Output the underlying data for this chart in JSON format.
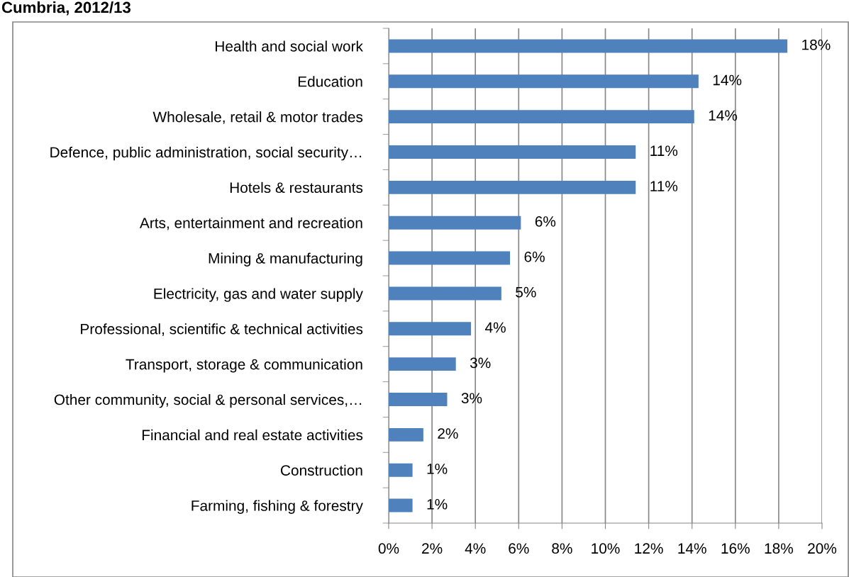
{
  "chart_data": {
    "type": "bar",
    "orientation": "horizontal",
    "title": "Cumbria, 2012/13",
    "categories": [
      "Health and social work",
      "Education",
      "Wholesale, retail & motor trades",
      "Defence, public administration, social security…",
      "Hotels & restaurants",
      "Arts, entertainment and recreation",
      "Mining & manufacturing",
      "Electricity, gas and water supply",
      "Professional, scientific & technical activities",
      "Transport, storage & communication",
      "Other community, social & personal services,…",
      "Financial and real estate activities",
      "Construction",
      "Farming, fishing & forestry"
    ],
    "values": [
      18.4,
      14.3,
      14.1,
      11.4,
      11.4,
      6.1,
      5.6,
      5.2,
      3.8,
      3.1,
      2.7,
      1.6,
      1.1,
      1.1
    ],
    "value_labels": [
      "18%",
      "14%",
      "14%",
      "11%",
      "11%",
      "6%",
      "6%",
      "5%",
      "4%",
      "3%",
      "3%",
      "2%",
      "1%",
      "1%"
    ],
    "color": "#4f81bd",
    "xlim": [
      0,
      20
    ],
    "xticks": [
      {
        "value": 0,
        "label": "0%"
      },
      {
        "value": 2,
        "label": "2%"
      },
      {
        "value": 4,
        "label": "4%"
      },
      {
        "value": 6,
        "label": "6%"
      },
      {
        "value": 8,
        "label": "8%"
      },
      {
        "value": 10,
        "label": "10%"
      },
      {
        "value": 12,
        "label": "12%"
      },
      {
        "value": 14,
        "label": "14%"
      },
      {
        "value": 16,
        "label": "16%"
      },
      {
        "value": 18,
        "label": "18%"
      },
      {
        "value": 20,
        "label": "20%"
      }
    ],
    "grid": "x"
  }
}
